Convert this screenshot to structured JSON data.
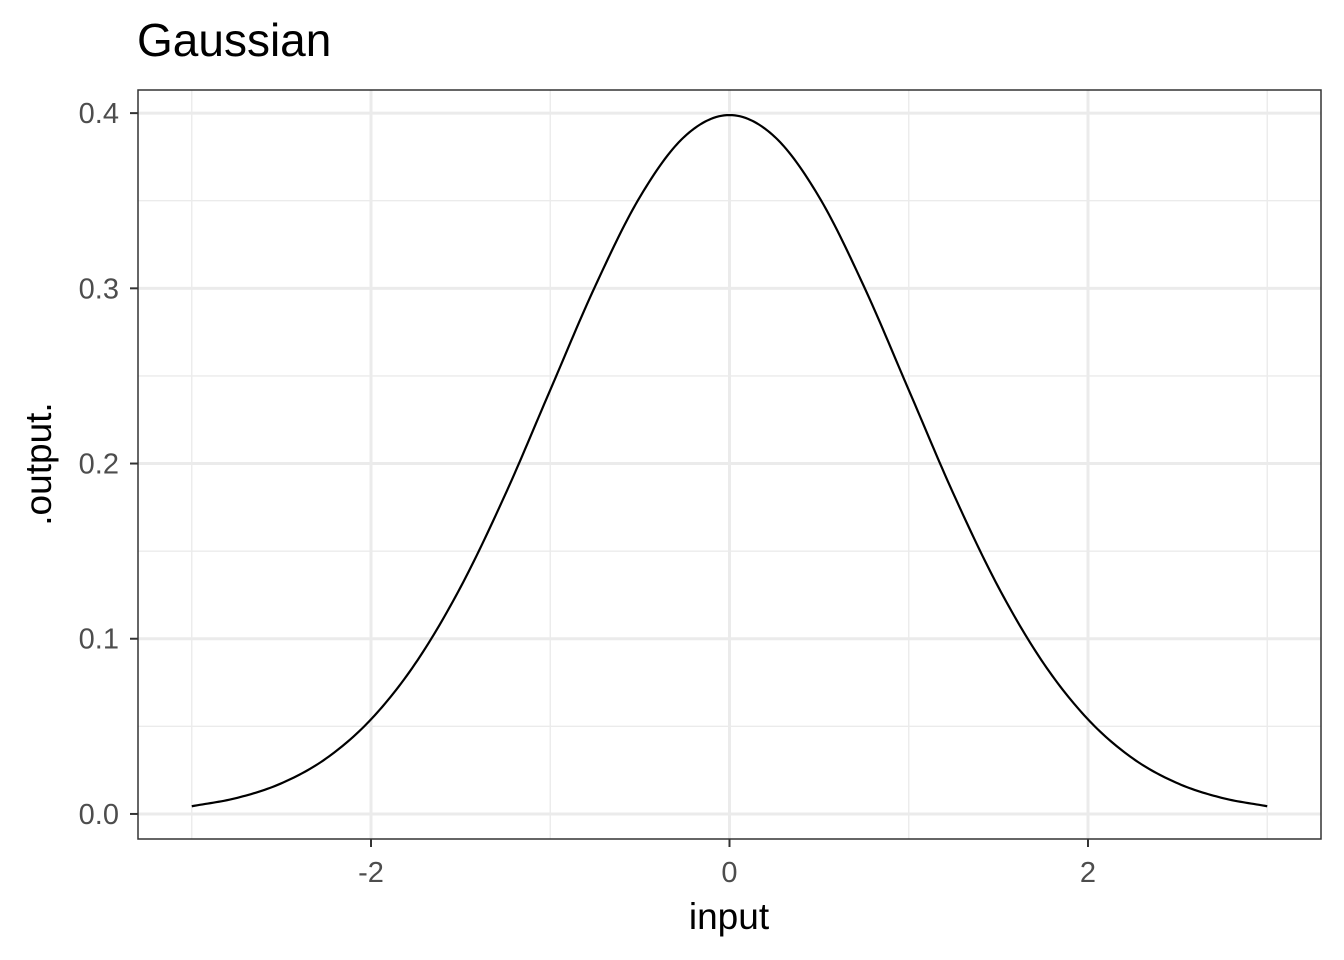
{
  "chart_data": {
    "type": "line",
    "title": "Gaussian",
    "xlabel": "input",
    "ylabel": ".output.",
    "xlim": [
      -3.3,
      3.3
    ],
    "ylim": [
      -0.0143,
      0.4132
    ],
    "x_ticks": [
      {
        "value": -2,
        "label": "-2"
      },
      {
        "value": 0,
        "label": "0"
      },
      {
        "value": 2,
        "label": "2"
      }
    ],
    "y_ticks": [
      {
        "value": 0.0,
        "label": "0.0"
      },
      {
        "value": 0.1,
        "label": "0.1"
      },
      {
        "value": 0.2,
        "label": "0.2"
      },
      {
        "value": 0.3,
        "label": "0.3"
      },
      {
        "value": 0.4,
        "label": "0.4"
      }
    ],
    "x_minor": [
      -3,
      -1,
      1,
      3
    ],
    "y_minor": [
      0.05,
      0.15,
      0.25,
      0.35
    ],
    "grid": true,
    "legend": "none",
    "series": [
      {
        "color": "#000000",
        "x": [
          -3.0,
          -2.75,
          -2.5,
          -2.25,
          -2.0,
          -1.75,
          -1.5,
          -1.25,
          -1.0,
          -0.75,
          -0.5,
          -0.25,
          0.0,
          0.25,
          0.5,
          0.75,
          1.0,
          1.25,
          1.5,
          1.75,
          2.0,
          2.25,
          2.5,
          2.75,
          3.0
        ],
        "y": [
          0.0044,
          0.0091,
          0.0175,
          0.0317,
          0.054,
          0.0863,
          0.1295,
          0.1826,
          0.242,
          0.3011,
          0.3521,
          0.3867,
          0.3989,
          0.3867,
          0.3521,
          0.3011,
          0.242,
          0.1826,
          0.1295,
          0.0863,
          0.054,
          0.0317,
          0.0175,
          0.0091,
          0.0044
        ]
      }
    ]
  }
}
